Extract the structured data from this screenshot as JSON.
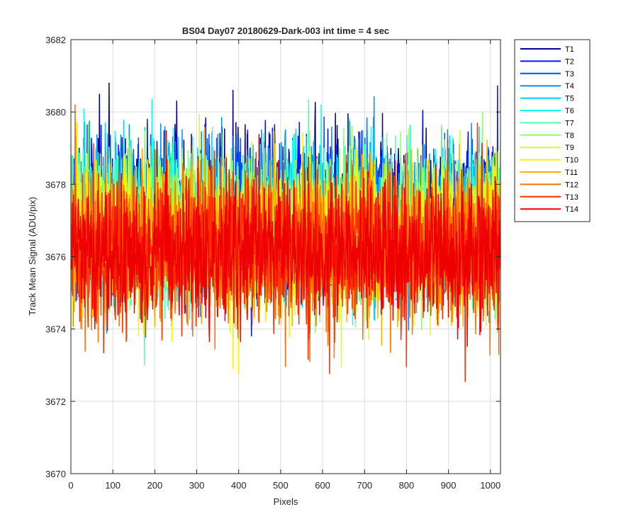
{
  "chart_data": {
    "type": "line",
    "title": "BS04 Day07 20180629-Dark-003 int time = 4 sec",
    "xlabel": "Pixels",
    "ylabel": "Track Mean Signal (ADU/pix)",
    "xlim": [
      0,
      1024
    ],
    "ylim": [
      3670,
      3682
    ],
    "xticks": [
      0,
      100,
      200,
      300,
      400,
      500,
      600,
      700,
      800,
      900,
      1000
    ],
    "yticks": [
      3670,
      3672,
      3674,
      3676,
      3678,
      3680,
      3682
    ],
    "grid": true,
    "legend_location": "outside-right-top",
    "series_points": 1024,
    "series": [
      {
        "name": "T1",
        "color": "#00008f",
        "mean": 3677.3,
        "spread": 1.05
      },
      {
        "name": "T2",
        "color": "#0010ff",
        "mean": 3677.2,
        "spread": 1.05
      },
      {
        "name": "T3",
        "color": "#0050ff",
        "mean": 3677.1,
        "spread": 1.0
      },
      {
        "name": "T4",
        "color": "#0090ff",
        "mean": 3677.0,
        "spread": 1.0
      },
      {
        "name": "T5",
        "color": "#00cfff",
        "mean": 3677.0,
        "spread": 1.0
      },
      {
        "name": "T6",
        "color": "#10ffef",
        "mean": 3676.9,
        "spread": 1.0
      },
      {
        "name": "T7",
        "color": "#50ffaf",
        "mean": 3676.8,
        "spread": 1.0
      },
      {
        "name": "T8",
        "color": "#8fff70",
        "mean": 3676.8,
        "spread": 1.0
      },
      {
        "name": "T9",
        "color": "#cfff30",
        "mean": 3676.7,
        "spread": 1.0
      },
      {
        "name": "T10",
        "color": "#ffef00",
        "mean": 3676.6,
        "spread": 1.0
      },
      {
        "name": "T11",
        "color": "#ffaf00",
        "mean": 3676.4,
        "spread": 1.0
      },
      {
        "name": "T12",
        "color": "#ff7000",
        "mean": 3676.3,
        "spread": 1.0
      },
      {
        "name": "T13",
        "color": "#ff3000",
        "mean": 3676.2,
        "spread": 1.0
      },
      {
        "name": "T14",
        "color": "#ef0000",
        "mean": 3676.1,
        "spread": 0.95
      }
    ]
  }
}
